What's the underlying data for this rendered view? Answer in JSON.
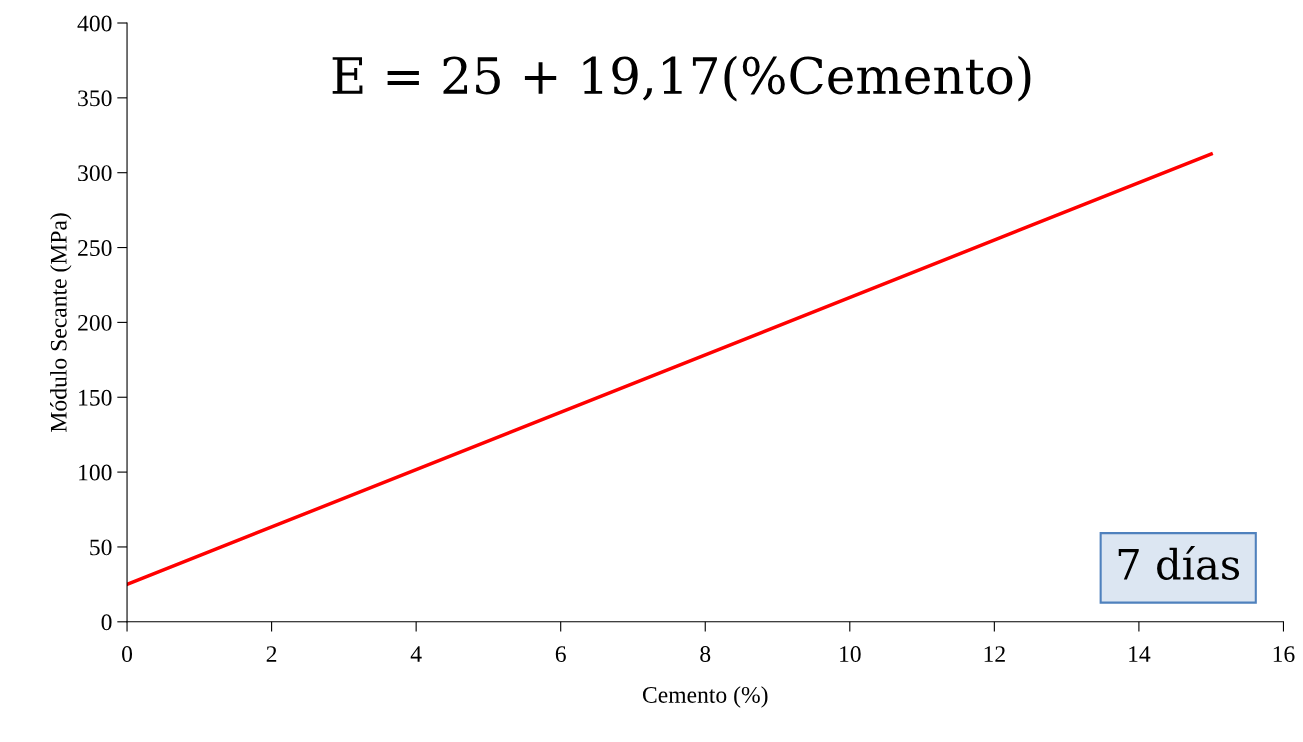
{
  "chart_data": {
    "type": "line",
    "xlabel": "Cemento (%)",
    "ylabel": "Módulo Secante (MPa)",
    "x": [
      0,
      15
    ],
    "series": [
      {
        "color": "#ff0000",
        "values": [
          25,
          312.5
        ]
      }
    ],
    "xlim": [
      0,
      16
    ],
    "xticks": [
      0,
      2,
      4,
      6,
      8,
      10,
      12,
      14,
      16
    ],
    "ylim": [
      0,
      400
    ],
    "yticks": [
      0,
      50,
      100,
      150,
      200,
      250,
      300,
      350,
      400
    ],
    "grid": false,
    "marker": "none",
    "line_style": "solid",
    "annotations": [
      "E = 25 + 19,17(%Cemento)",
      "7 días"
    ]
  }
}
